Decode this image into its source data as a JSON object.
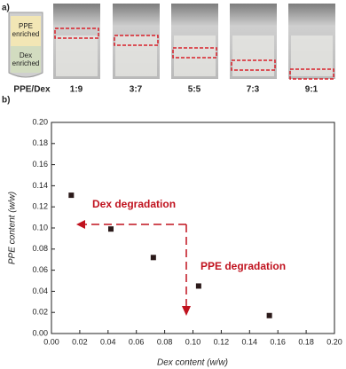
{
  "panel_a": {
    "label": "a)",
    "top_phase": [
      "PPE",
      "enriched"
    ],
    "bottom_phase": [
      "Dex",
      "enriched"
    ],
    "row_label": "PPE/Dex",
    "ratios": [
      "1:9",
      "3:7",
      "5:5",
      "7:3",
      "9:1"
    ]
  },
  "chart_data": {
    "type": "scatter",
    "panel_label": "b)",
    "x_label": "Dex content (w/w)",
    "y_label": "PPE content (w/w)",
    "annotations": [
      "Dex degradation",
      "PPE degradation"
    ],
    "x": [
      0.014,
      0.042,
      0.072,
      0.104,
      0.154
    ],
    "values": [
      0.131,
      0.099,
      0.072,
      0.045,
      0.017
    ],
    "color": "#2b1a1a",
    "xlim": [
      0,
      0.2
    ],
    "ylim": [
      0,
      0.2
    ],
    "xticks": [
      {
        "value": 0,
        "label": "0.00"
      },
      {
        "value": 0.02,
        "label": "0.02"
      },
      {
        "value": 0.04,
        "label": "0.04"
      },
      {
        "value": 0.06,
        "label": "0.06"
      },
      {
        "value": 0.08,
        "label": "0.08"
      },
      {
        "value": 0.1,
        "label": "0.10"
      },
      {
        "value": 0.12,
        "label": "0.12"
      },
      {
        "value": 0.14,
        "label": "0.14"
      },
      {
        "value": 0.16,
        "label": "0.16"
      },
      {
        "value": 0.18,
        "label": "0.18"
      },
      {
        "value": 0.2,
        "label": "0.20"
      }
    ],
    "yticks": [
      {
        "value": 0,
        "label": "0.00"
      },
      {
        "value": 0.02,
        "label": "0.02"
      },
      {
        "value": 0.04,
        "label": "0.04"
      },
      {
        "value": 0.06,
        "label": "0.06"
      },
      {
        "value": 0.08,
        "label": "0.08"
      },
      {
        "value": 0.1,
        "label": "0.10"
      },
      {
        "value": 0.12,
        "label": "0.12"
      },
      {
        "value": 0.14,
        "label": "0.14"
      },
      {
        "value": 0.16,
        "label": "0.16"
      },
      {
        "value": 0.18,
        "label": "0.18"
      },
      {
        "value": 0.2,
        "label": "0.20"
      }
    ]
  }
}
